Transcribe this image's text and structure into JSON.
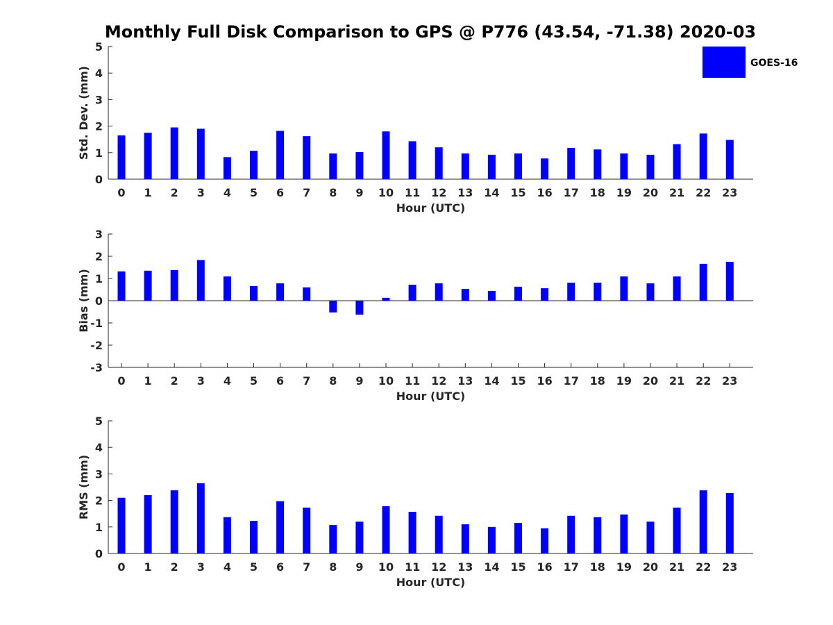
{
  "title": "Monthly Full Disk Comparison to GPS @ P776 (43.54, -71.38) 2020-03",
  "legend": {
    "label": "GOES-16",
    "color": "#0000ff"
  },
  "chart_data": [
    {
      "type": "bar",
      "name": "std-dev",
      "title": "",
      "xlabel": "Hour (UTC)",
      "ylabel": "Std. Dev. (mm)",
      "ylim": [
        0,
        5
      ],
      "yticks": [
        "0",
        "1",
        "2",
        "3",
        "4",
        "5"
      ],
      "categories": [
        "0",
        "1",
        "2",
        "3",
        "4",
        "5",
        "6",
        "7",
        "8",
        "9",
        "10",
        "11",
        "12",
        "13",
        "14",
        "15",
        "16",
        "17",
        "18",
        "19",
        "20",
        "21",
        "22",
        "23"
      ],
      "series": [
        {
          "name": "GOES-16",
          "color": "#0000ff",
          "values": [
            1.65,
            1.75,
            1.95,
            1.9,
            0.83,
            1.07,
            1.82,
            1.62,
            0.97,
            1.02,
            1.8,
            1.43,
            1.2,
            0.97,
            0.92,
            0.97,
            0.78,
            1.18,
            1.12,
            0.97,
            0.92,
            1.32,
            1.72,
            1.48
          ]
        }
      ]
    },
    {
      "type": "bar",
      "name": "bias",
      "title": "",
      "xlabel": "Hour (UTC)",
      "ylabel": "Bias (mm)",
      "ylim": [
        -3,
        3
      ],
      "yticks": [
        "-3",
        "-2",
        "-1",
        "0",
        "1",
        "2",
        "3"
      ],
      "categories": [
        "0",
        "1",
        "2",
        "3",
        "4",
        "5",
        "6",
        "7",
        "8",
        "9",
        "10",
        "11",
        "12",
        "13",
        "14",
        "15",
        "16",
        "17",
        "18",
        "19",
        "20",
        "21",
        "22",
        "23"
      ],
      "series": [
        {
          "name": "GOES-16",
          "color": "#0000ff",
          "values": [
            1.32,
            1.35,
            1.38,
            1.83,
            1.09,
            0.66,
            0.78,
            0.6,
            -0.53,
            -0.63,
            0.13,
            0.72,
            0.78,
            0.53,
            0.44,
            0.63,
            0.56,
            0.81,
            0.81,
            1.09,
            0.78,
            1.09,
            1.66,
            1.75
          ]
        }
      ]
    },
    {
      "type": "bar",
      "name": "rms",
      "title": "",
      "xlabel": "Hour (UTC)",
      "ylabel": "RMS (mm)",
      "ylim": [
        0,
        5
      ],
      "yticks": [
        "0",
        "1",
        "2",
        "3",
        "4",
        "5"
      ],
      "categories": [
        "0",
        "1",
        "2",
        "3",
        "4",
        "5",
        "6",
        "7",
        "8",
        "9",
        "10",
        "11",
        "12",
        "13",
        "14",
        "15",
        "16",
        "17",
        "18",
        "19",
        "20",
        "21",
        "22",
        "23"
      ],
      "series": [
        {
          "name": "GOES-16",
          "color": "#0000ff",
          "values": [
            2.1,
            2.2,
            2.38,
            2.65,
            1.37,
            1.23,
            1.97,
            1.73,
            1.07,
            1.2,
            1.78,
            1.57,
            1.42,
            1.1,
            1.0,
            1.15,
            0.95,
            1.42,
            1.37,
            1.47,
            1.2,
            1.73,
            2.38,
            2.28
          ]
        }
      ]
    }
  ]
}
